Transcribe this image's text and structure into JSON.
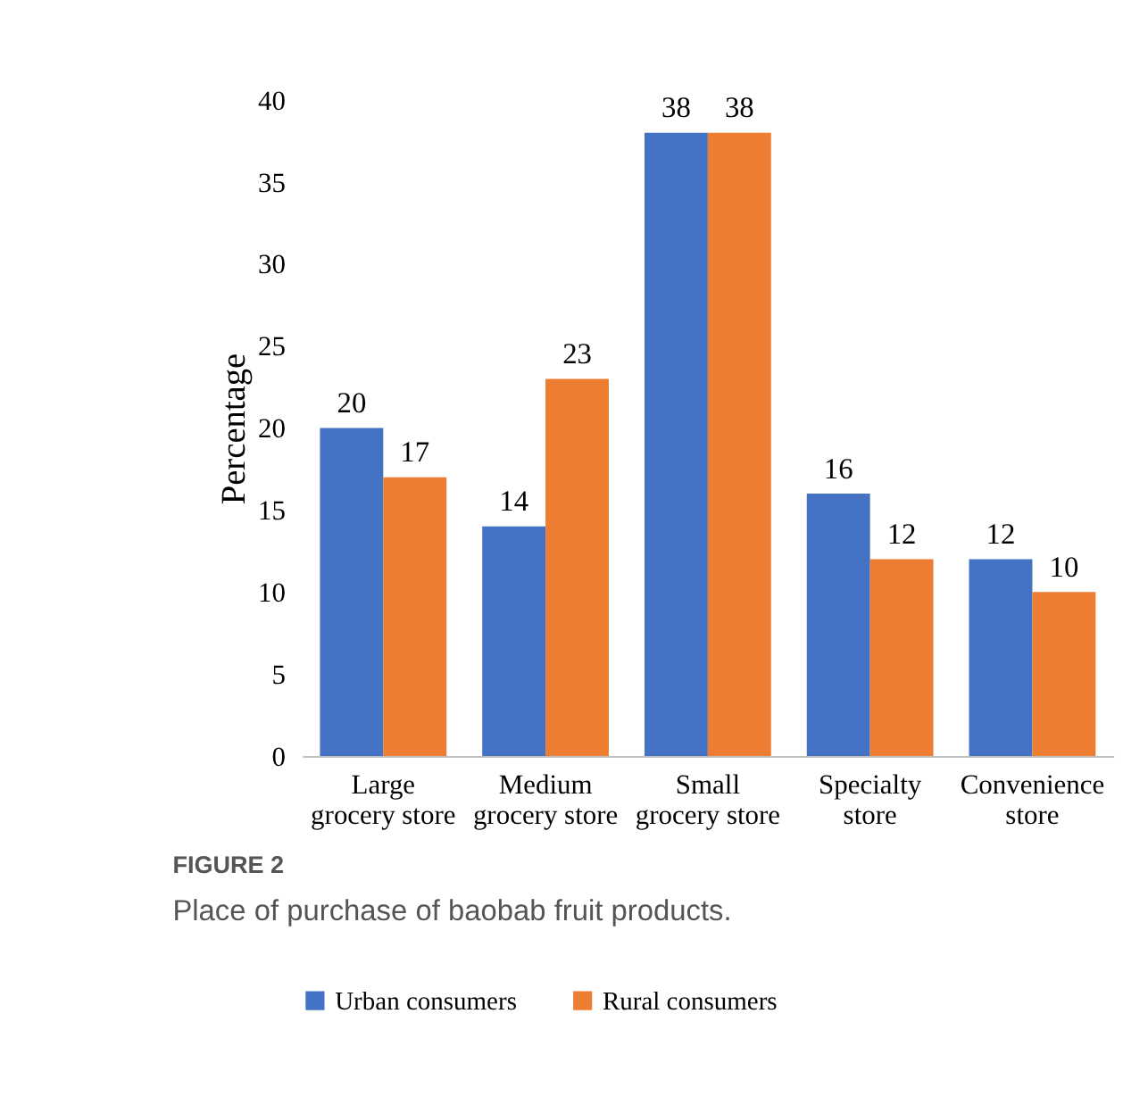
{
  "chart_data": {
    "type": "bar",
    "ylabel": "Percentage",
    "categories": [
      "Large grocery store",
      "Medium grocery store",
      "Small grocery store",
      "Specialty store",
      "Convenience store"
    ],
    "series": [
      {
        "name": "Urban consumers",
        "color": "#4472c4",
        "values": [
          20,
          14,
          38,
          16,
          12
        ]
      },
      {
        "name": "Rural consumers",
        "color": "#ed7d31",
        "values": [
          17,
          23,
          38,
          12,
          10
        ]
      }
    ],
    "ylim": [
      0,
      40
    ],
    "yticks": [
      0,
      5,
      10,
      15,
      20,
      25,
      30,
      35,
      40
    ],
    "grid": false,
    "legend": "bottom",
    "data_labels": true,
    "annotations": [
      "FIGURE 2",
      "Place of purchase of baobab fruit products."
    ]
  }
}
